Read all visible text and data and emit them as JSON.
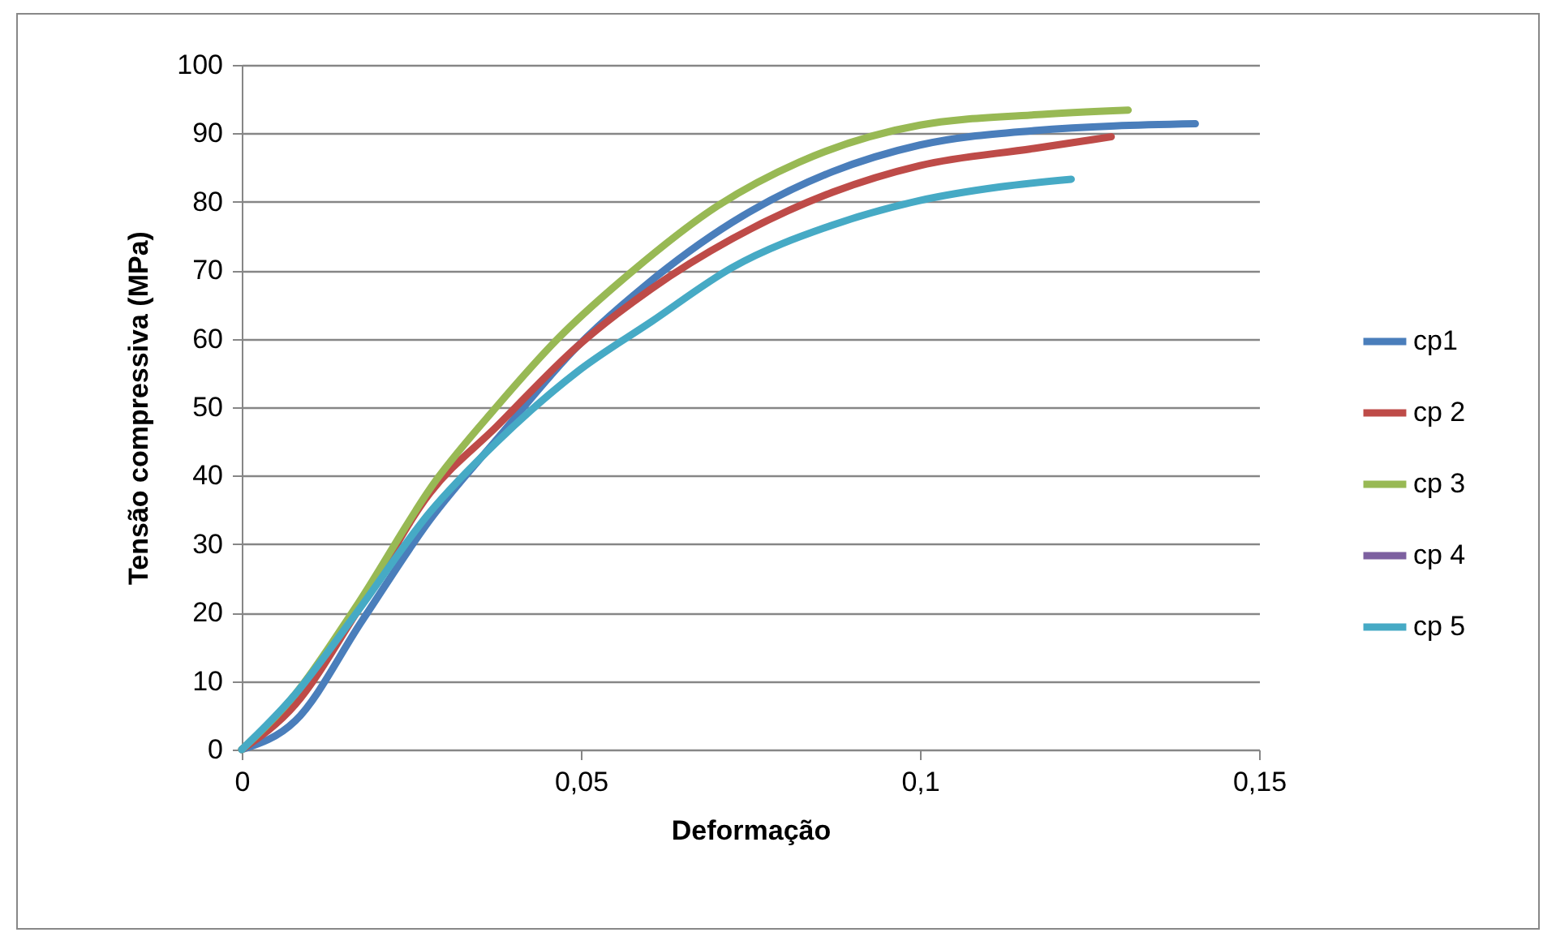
{
  "chart_data": {
    "type": "line",
    "xlabel": "Deformação",
    "ylabel": "Tensão compressiva (MPa)",
    "xlim": [
      0,
      0.15
    ],
    "xticks": [
      0,
      {
        "value": 0.05,
        "label": "0,05"
      },
      {
        "value": 0.1,
        "label": "0,1"
      },
      {
        "value": 0.15,
        "label": "0,15"
      }
    ],
    "ylim": [
      0,
      100
    ],
    "yticks": [
      0,
      10,
      20,
      30,
      40,
      50,
      60,
      70,
      80,
      90,
      100
    ],
    "grid": "y",
    "legend": "right",
    "marker": "none",
    "line_style": "solid",
    "series": [
      {
        "name": "cp1",
        "color": "#4a7ebb",
        "x": [
          0,
          0.0079,
          0.0178,
          0.0277,
          0.0376,
          0.0495,
          0.0594,
          0.0723,
          0.0871,
          0.1,
          0.1168,
          0.1406
        ],
        "values": [
          0,
          4.2,
          18.9,
          33.5,
          45.3,
          58.9,
          67.7,
          77.0,
          84.4,
          88.3,
          90.4,
          91.4
        ]
      },
      {
        "name": "cp 2",
        "color": "#be4b48",
        "x": [
          0,
          0.0079,
          0.0168,
          0.0277,
          0.0376,
          0.0495,
          0.0604,
          0.0723,
          0.0871,
          0.1,
          0.1168,
          0.1282
        ],
        "values": [
          0,
          6.6,
          19.8,
          37.4,
          47.2,
          58.9,
          67.3,
          74.6,
          81.4,
          85.3,
          87.8,
          89.5
        ]
      },
      {
        "name": "cp 3",
        "color": "#98b954",
        "x": [
          0,
          0.0079,
          0.0168,
          0.0287,
          0.0376,
          0.0465,
          0.0574,
          0.0703,
          0.0822,
          0.1,
          0.1168,
          0.1307
        ],
        "values": [
          0,
          8.1,
          20.8,
          39.4,
          50.1,
          59.9,
          69.7,
          79.5,
          85.8,
          91.2,
          92.7,
          93.4
        ]
      },
      {
        "name": "cp 4",
        "color": "#7d60a0"
      },
      {
        "name": "cp 5",
        "color": "#46aac5",
        "x": [
          0,
          0.0079,
          0.0168,
          0.0277,
          0.0376,
          0.0495,
          0.0604,
          0.0723,
          0.0871,
          0.1,
          0.1119,
          0.1223
        ],
        "values": [
          0,
          8.1,
          19.8,
          34.6,
          44.9,
          55.2,
          62.5,
          70.4,
          76.6,
          80.2,
          82.2,
          83.3
        ]
      }
    ]
  }
}
